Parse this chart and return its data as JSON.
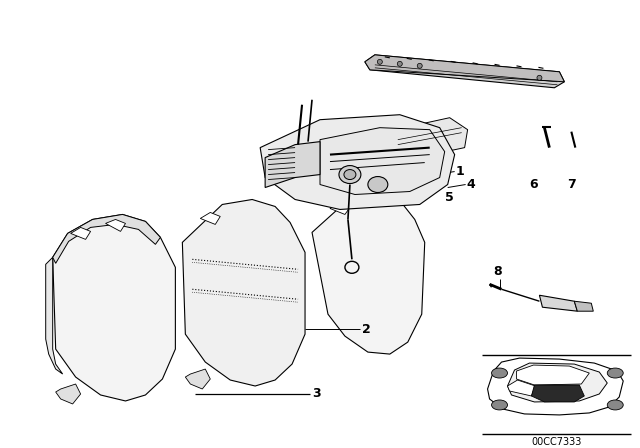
{
  "bg_color": "#ffffff",
  "diagram_code": "00CC7333",
  "line_color": "#000000",
  "label_color": "#000000",
  "part_numbers": [
    "1",
    "2",
    "3",
    "4",
    "5",
    "6",
    "7",
    "8"
  ],
  "rail_color": "#c8c8c8",
  "seat_fill": "#f2f2f2",
  "seat_edge": "#000000",
  "mech_color": "#e0e0e0"
}
